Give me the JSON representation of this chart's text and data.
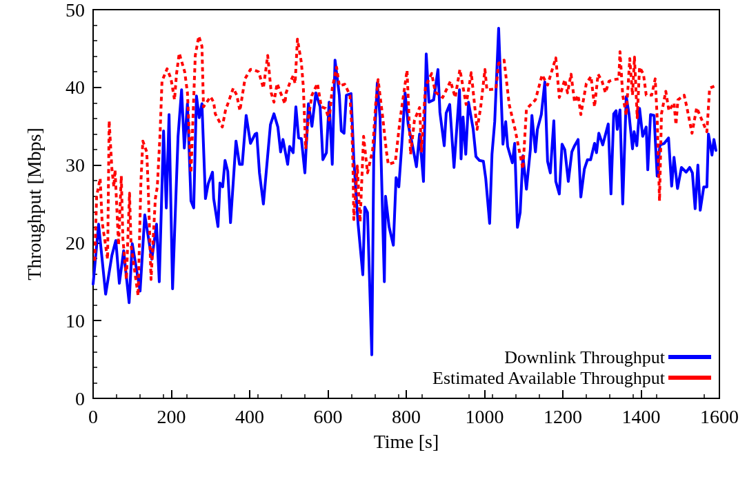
{
  "chart_data": {
    "type": "line",
    "xlabel": "Time [s]",
    "ylabel": "Throughput [Mbps]",
    "xlim": [
      0,
      1600
    ],
    "ylim": [
      0,
      50
    ],
    "xticks": [
      0,
      200,
      400,
      600,
      800,
      1000,
      1200,
      1400,
      1600
    ],
    "yticks": [
      0,
      10,
      20,
      30,
      40,
      50
    ],
    "grid": false,
    "legend": "bottom right",
    "marker": "none",
    "series": [
      {
        "name": "Downlink Throughput",
        "color": "#0000ff",
        "line_style": "solid",
        "x": [
          0,
          14,
          32,
          48,
          58,
          67,
          78,
          92,
          100,
          120,
          132,
          150,
          162,
          169,
          180,
          187,
          194,
          203,
          217,
          226,
          233,
          241,
          250,
          257,
          264,
          271,
          278,
          287,
          294,
          305,
          308,
          319,
          324,
          331,
          337,
          344,
          351,
          365,
          374,
          381,
          391,
          402,
          414,
          418,
          425,
          435,
          453,
          462,
          472,
          479,
          485,
          497,
          502,
          511,
          518,
          525,
          532,
          541,
          550,
          559,
          569,
          580,
          587,
          596,
          603,
          611,
          618,
          629,
          634,
          641,
          647,
          659,
          666,
          677,
          689,
          694,
          701,
          712,
          717,
          726,
          733,
          744,
          747,
          756,
          767,
          774,
          781,
          788,
          797,
          805,
          816,
          826,
          834,
          844,
          851,
          858,
          870,
          881,
          886,
          897,
          902,
          911,
          922,
          936,
          940,
          945,
          952,
          959,
          971,
          978,
          987,
          997,
          1003,
          1013,
          1019,
          1026,
          1036,
          1047,
          1054,
          1059,
          1071,
          1077,
          1084,
          1091,
          1098,
          1107,
          1117,
          1121,
          1130,
          1135,
          1145,
          1154,
          1161,
          1168,
          1177,
          1182,
          1191,
          1198,
          1205,
          1214,
          1223,
          1230,
          1239,
          1246,
          1255,
          1263,
          1271,
          1281,
          1286,
          1292,
          1302,
          1316,
          1323,
          1330,
          1336,
          1339,
          1346,
          1353,
          1362,
          1369,
          1378,
          1382,
          1389,
          1396,
          1404,
          1413,
          1417,
          1424,
          1433,
          1441,
          1448,
          1459,
          1470,
          1478,
          1484,
          1493,
          1503,
          1515,
          1524,
          1531,
          1538,
          1545,
          1551,
          1560,
          1568,
          1572,
          1581,
          1586,
          1591
        ],
        "values": [
          14.7,
          22.4,
          13.4,
          18.4,
          20.3,
          14.8,
          19,
          12.3,
          19.9,
          13.8,
          23.6,
          17.9,
          22.4,
          15,
          34.4,
          24.5,
          36.5,
          14.1,
          33.7,
          39.7,
          32.2,
          37.9,
          25.4,
          24.5,
          38.9,
          36.1,
          37.9,
          25.7,
          27.6,
          29.1,
          25.7,
          22.1,
          27.7,
          27.2,
          30.6,
          29.2,
          22.6,
          33.1,
          30.1,
          30.1,
          36.4,
          32.8,
          34,
          34.1,
          29,
          25,
          35.2,
          36.6,
          34.9,
          31.7,
          33.3,
          30.1,
          32.4,
          31.6,
          37.5,
          33.5,
          33.4,
          29,
          37.9,
          35,
          39.3,
          37.5,
          30.7,
          31.6,
          38.1,
          30.1,
          43.5,
          39,
          34.4,
          34.1,
          39,
          39.2,
          30.7,
          22.4,
          15.9,
          24.6,
          23.9,
          5.6,
          31.3,
          40.6,
          36.1,
          15,
          26,
          22.1,
          19.7,
          28.4,
          27.2,
          32.2,
          39.3,
          35.2,
          32.5,
          29.8,
          34,
          27.9,
          44.3,
          38.1,
          38.4,
          42.3,
          36.8,
          32.5,
          36.7,
          37.8,
          29.7,
          39.7,
          30.8,
          36.2,
          31.4,
          38.1,
          34.6,
          31.1,
          30.6,
          30.5,
          28.3,
          22.5,
          31.4,
          35.6,
          47.6,
          32.7,
          35.6,
          32.4,
          30.3,
          32.8,
          22,
          23.9,
          31.2,
          26.9,
          32,
          36.4,
          31.7,
          34.6,
          36.5,
          40.7,
          30.5,
          29,
          35.7,
          27.9,
          26.3,
          32.7,
          32,
          27.9,
          31.7,
          32.5,
          33.3,
          25.9,
          29.5,
          30.7,
          30.7,
          32.8,
          31.6,
          34.1,
          32.6,
          35.3,
          26.3,
          36.6,
          37,
          34.6,
          37.1,
          25,
          38.8,
          36.6,
          32.1,
          34.3,
          32.5,
          37.3,
          33.7,
          34.9,
          29.4,
          36.5,
          36.4,
          28.6,
          32.6,
          32.8,
          33.5,
          27.3,
          31,
          27,
          29.7,
          29.1,
          29.7,
          29,
          24.4,
          30,
          24.2,
          27.2,
          27.2,
          34,
          31.3,
          33.3,
          31.9
        ]
      },
      {
        "name": "Estimated Available Throughput",
        "color": "#ff0000",
        "line_style": "dotted",
        "x": [
          4,
          9,
          18,
          23,
          37,
          41,
          48,
          53,
          56,
          65,
          72,
          76,
          85,
          93,
          97,
          115,
          122,
          127,
          137,
          141,
          148,
          159,
          164,
          171,
          176,
          189,
          199,
          208,
          213,
          220,
          234,
          241,
          250,
          261,
          270,
          278,
          282,
          300,
          308,
          312,
          330,
          338,
          358,
          367,
          375,
          388,
          402,
          409,
          423,
          435,
          446,
          455,
          462,
          470,
          479,
          490,
          493,
          502,
          511,
          516,
          522,
          532,
          537,
          543,
          550,
          559,
          573,
          583,
          594,
          603,
          611,
          622,
          629,
          643,
          656,
          661,
          664,
          666,
          675,
          682,
          691,
          701,
          714,
          722,
          728,
          740,
          749,
          754,
          772,
          784,
          802,
          811,
          821,
          834,
          839,
          849,
          865,
          874,
          893,
          913,
          925,
          937,
          953,
          966,
          981,
          990,
          1001,
          1006,
          1029,
          1036,
          1050,
          1063,
          1078,
          1098,
          1107,
          1130,
          1147,
          1161,
          1182,
          1191,
          1205,
          1212,
          1221,
          1230,
          1239,
          1246,
          1260,
          1272,
          1281,
          1290,
          1300,
          1309,
          1318,
          1330,
          1343,
          1346,
          1353,
          1362,
          1371,
          1378,
          1383,
          1390,
          1396,
          1406,
          1413,
          1427,
          1436,
          1441,
          1447,
          1452,
          1463,
          1471,
          1484,
          1489,
          1494,
          1510,
          1517,
          1530,
          1542,
          1556,
          1568,
          1575,
          1589
        ],
        "values": [
          17.7,
          26,
          28.3,
          22.7,
          17.9,
          35.7,
          29.5,
          27.2,
          29.4,
          19.7,
          28.6,
          20.6,
          15.3,
          26.4,
          19.7,
          13.2,
          27.7,
          33.1,
          31.7,
          26.8,
          15.3,
          25.7,
          27.2,
          34,
          40.8,
          42.4,
          41.1,
          38.4,
          41.7,
          44.4,
          42,
          39.3,
          29,
          44.1,
          46.6,
          45.3,
          37.5,
          38.8,
          38.1,
          36.6,
          34.9,
          37,
          39.9,
          39,
          37,
          41.1,
          42.3,
          42.3,
          42,
          39.9,
          44.1,
          39.3,
          38.1,
          40.5,
          39.3,
          37.9,
          39.3,
          40.5,
          41.5,
          40.5,
          46.2,
          43.2,
          40.1,
          32.1,
          36.1,
          39,
          40.5,
          37.5,
          37.3,
          35.8,
          39.9,
          42.6,
          40.2,
          40.4,
          39,
          34.9,
          29.5,
          23,
          29.9,
          22.7,
          33.7,
          29,
          31.9,
          37.9,
          41,
          36.1,
          31.9,
          30.1,
          30.4,
          35.8,
          42.2,
          31.4,
          35.8,
          37.4,
          31.8,
          40.1,
          41.8,
          39.4,
          38.7,
          40.8,
          38.7,
          42.3,
          37.8,
          41.9,
          34.6,
          37.4,
          42.3,
          39.7,
          39.8,
          43.1,
          43.5,
          37.8,
          34.6,
          29.5,
          37.2,
          38.4,
          41.6,
          40.3,
          43.8,
          38.7,
          41,
          39.3,
          41.7,
          38.1,
          39,
          36.5,
          40.5,
          41.4,
          37.5,
          41.7,
          40.8,
          39.3,
          40.8,
          41,
          41.1,
          44.6,
          39,
          36.4,
          43.7,
          39,
          43.9,
          36.1,
          42.6,
          41.7,
          39,
          39,
          41.1,
          36.1,
          25.4,
          36.6,
          39.5,
          37,
          38,
          35.2,
          38.4,
          39,
          37.4,
          34.1,
          37.4,
          35.7,
          34.3,
          39.9,
          40.2
        ]
      }
    ]
  }
}
